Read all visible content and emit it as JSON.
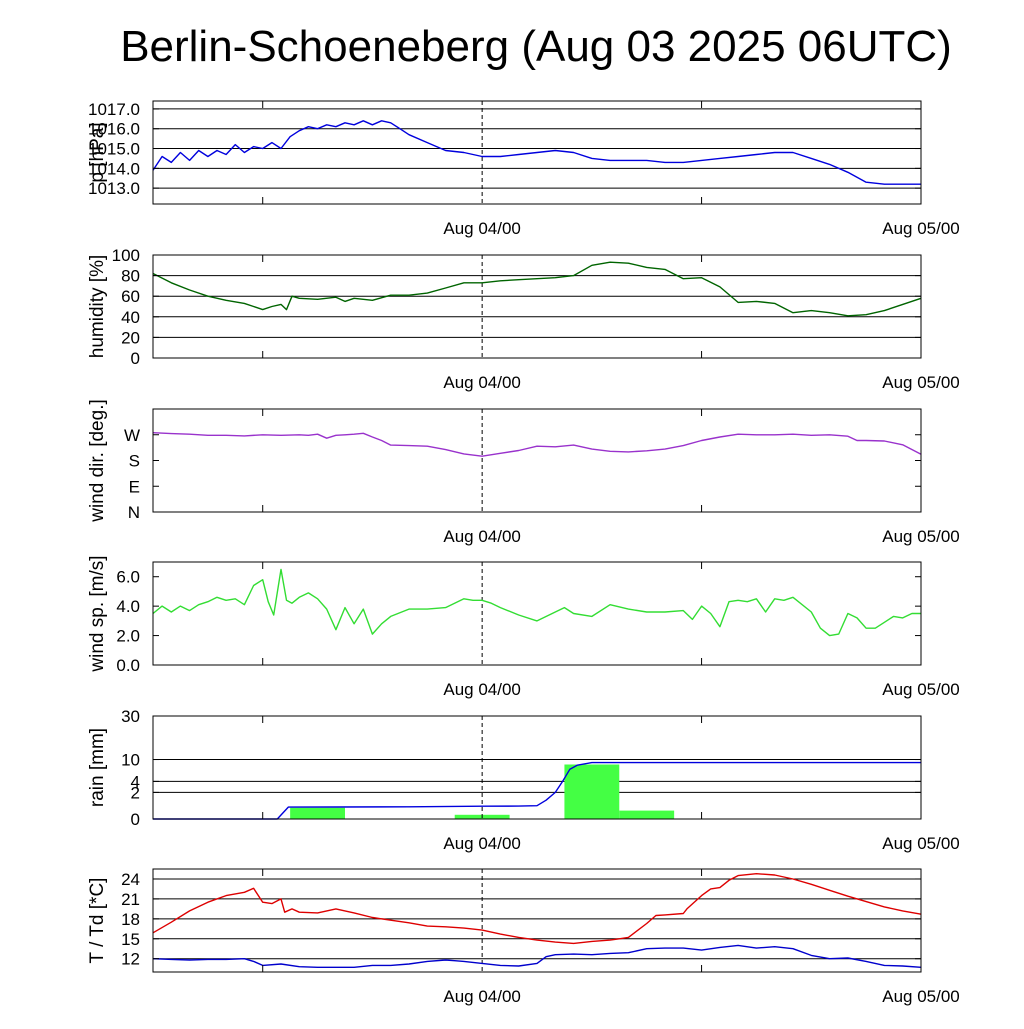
{
  "title": "Berlin-Schoeneberg (Aug 03 2025 06UTC)",
  "x_tick_labels": [
    "Aug 04/00",
    "Aug 05/00"
  ],
  "chart_data": [
    {
      "type": "line",
      "ylabel": "p [hPa]",
      "ylim": [
        1012.2,
        1017.4
      ],
      "yticks": [
        1013.0,
        1014.0,
        1015.0,
        1016.0,
        1017.0
      ],
      "ytick_labels": [
        "1013.0",
        "1014.0",
        "1015.0",
        "1016.0",
        "1017.0"
      ],
      "grid": true,
      "series": [
        {
          "color": "#0000dd",
          "x": [
            0,
            0.5,
            1,
            1.5,
            2,
            2.5,
            3,
            3.5,
            4,
            4.5,
            5,
            5.5,
            6,
            6.5,
            7,
            7.5,
            8,
            8.5,
            9,
            9.5,
            10,
            10.5,
            11,
            11.5,
            12,
            12.5,
            13,
            13.5,
            14,
            15,
            16,
            17,
            18,
            19,
            20,
            21,
            22,
            23,
            24,
            25,
            26,
            27,
            28,
            29,
            30,
            31,
            32,
            33,
            34,
            35,
            36,
            37,
            38,
            39,
            40,
            41,
            42
          ],
          "y": [
            1013.9,
            1014.6,
            1014.3,
            1014.8,
            1014.4,
            1014.9,
            1014.6,
            1014.9,
            1014.7,
            1015.2,
            1014.8,
            1015.1,
            1015.0,
            1015.3,
            1015.0,
            1015.6,
            1015.9,
            1016.1,
            1016.0,
            1016.2,
            1016.1,
            1016.3,
            1016.2,
            1016.4,
            1016.2,
            1016.4,
            1016.3,
            1016.0,
            1015.7,
            1015.3,
            1014.9,
            1014.8,
            1014.6,
            1014.6,
            1014.7,
            1014.8,
            1014.9,
            1014.8,
            1014.5,
            1014.4,
            1014.4,
            1014.4,
            1014.3,
            1014.3,
            1014.4,
            1014.5,
            1014.6,
            1014.7,
            1014.8,
            1014.8,
            1014.5,
            1014.2,
            1013.8,
            1013.3,
            1013.2,
            1013.2,
            1013.2
          ]
        }
      ]
    },
    {
      "type": "line",
      "ylabel": "humidity [%]",
      "ylim": [
        0,
        100
      ],
      "yticks": [
        0,
        20,
        40,
        60,
        80,
        100
      ],
      "ytick_labels": [
        "0",
        "20",
        "40",
        "60",
        "80",
        "100"
      ],
      "grid": true,
      "series": [
        {
          "color": "#006400",
          "x": [
            0,
            1,
            2,
            3,
            4,
            5,
            5.5,
            6,
            6.5,
            7,
            7.3,
            7.6,
            8,
            9,
            10,
            10.5,
            11,
            12,
            13,
            14,
            15,
            16,
            17,
            18,
            19,
            20,
            21,
            22,
            23,
            24,
            25,
            26,
            27,
            28,
            29,
            30,
            31,
            32,
            33,
            34,
            35,
            36,
            37,
            38,
            39,
            40,
            41,
            42
          ],
          "y": [
            82,
            73,
            66,
            60,
            56,
            53,
            50,
            47,
            50,
            52,
            47,
            60,
            58,
            57,
            59,
            55,
            58,
            56,
            61,
            61,
            63,
            68,
            73,
            73,
            75,
            76,
            77,
            78,
            80,
            90,
            93,
            92,
            88,
            86,
            77,
            78,
            69,
            54,
            55,
            53,
            44,
            46,
            44,
            41,
            42,
            46,
            52,
            58
          ]
        }
      ]
    },
    {
      "type": "line",
      "ylabel": "wind dir. [deg.]",
      "ylim": [
        0,
        360
      ],
      "yticks": [
        0,
        90,
        180,
        270
      ],
      "ytick_labels": [
        "N",
        "E",
        "S",
        "W"
      ],
      "grid": false,
      "series": [
        {
          "color": "#9932cc",
          "x": [
            0,
            1,
            2,
            3,
            4,
            5,
            6,
            7,
            8,
            8.5,
            9,
            9.5,
            10,
            10.5,
            11,
            11.5,
            12,
            12.5,
            13,
            14,
            15,
            16,
            17,
            18,
            19,
            20,
            21,
            22,
            23,
            24,
            25,
            26,
            27,
            28,
            29,
            30,
            31,
            32,
            33,
            34,
            35,
            36,
            37,
            38,
            38.5,
            39,
            40,
            41,
            42
          ],
          "y": [
            277,
            274,
            272,
            268,
            268,
            266,
            270,
            268,
            270,
            268,
            272,
            258,
            268,
            270,
            272,
            275,
            262,
            250,
            234,
            232,
            230,
            218,
            203,
            195,
            205,
            215,
            230,
            228,
            234,
            220,
            212,
            210,
            214,
            220,
            232,
            250,
            262,
            272,
            270,
            270,
            272,
            268,
            270,
            265,
            250,
            250,
            248,
            235,
            202
          ]
        }
      ]
    },
    {
      "type": "line",
      "ylabel": "wind sp. [m/s]",
      "ylim": [
        0,
        7
      ],
      "yticks": [
        0,
        2,
        4,
        6
      ],
      "ytick_labels": [
        "0.0",
        "2.0",
        "4.0",
        "6.0"
      ],
      "grid": false,
      "series": [
        {
          "color": "#33dd33",
          "x": [
            0,
            0.5,
            1,
            1.5,
            2,
            2.5,
            3,
            3.5,
            4,
            4.5,
            5,
            5.5,
            6,
            6.3,
            6.6,
            7,
            7.3,
            7.6,
            8,
            8.5,
            9,
            9.5,
            10,
            10.5,
            11,
            11.5,
            12,
            12.5,
            13,
            14,
            15,
            16,
            17,
            17.5,
            18,
            18.5,
            19,
            20,
            21,
            22,
            22.5,
            23,
            24,
            25,
            26,
            27,
            28,
            29,
            29.5,
            30,
            30.5,
            31,
            31.5,
            32,
            32.5,
            33,
            33.5,
            34,
            34.5,
            35,
            36,
            36.5,
            37,
            37.5,
            38,
            38.5,
            39,
            39.5,
            40,
            40.5,
            41,
            41.5,
            42
          ],
          "y": [
            3.5,
            4.0,
            3.6,
            4.0,
            3.7,
            4.1,
            4.3,
            4.6,
            4.4,
            4.5,
            4.1,
            5.4,
            5.8,
            4.3,
            3.4,
            6.5,
            4.4,
            4.2,
            4.6,
            4.9,
            4.5,
            3.8,
            2.4,
            3.9,
            2.8,
            3.8,
            2.1,
            2.8,
            3.3,
            3.8,
            3.8,
            3.9,
            4.5,
            4.4,
            4.4,
            4.2,
            3.9,
            3.4,
            3.0,
            3.6,
            3.9,
            3.5,
            3.3,
            4.1,
            3.8,
            3.6,
            3.6,
            3.7,
            3.1,
            4.0,
            3.5,
            2.6,
            4.3,
            4.4,
            4.3,
            4.5,
            3.6,
            4.5,
            4.4,
            4.6,
            3.6,
            2.5,
            2.0,
            2.1,
            3.5,
            3.2,
            2.5,
            2.5,
            2.9,
            3.3,
            3.2,
            3.5,
            3.5
          ]
        }
      ]
    },
    {
      "type": "bar",
      "ylabel": "rain [mm]",
      "scale": "sqrt",
      "ylim": [
        0,
        30
      ],
      "yticks": [
        0,
        2,
        4,
        10,
        30
      ],
      "ytick_labels": [
        "0",
        "2",
        "4",
        "10",
        "30"
      ],
      "grid": true,
      "bars": [
        {
          "x0": 7.5,
          "x1": 10.5,
          "value": 0.36
        },
        {
          "x0": 16.5,
          "x1": 19.5,
          "value": 0.05
        },
        {
          "x0": 22.5,
          "x1": 25.5,
          "value": 8.4
        },
        {
          "x0": 25.5,
          "x1": 28.5,
          "value": 0.2
        }
      ],
      "bar_color": "#44ff44",
      "series": [
        {
          "color": "#0000dd",
          "x": [
            0,
            6.8,
            7.4,
            10,
            14,
            18,
            20,
            21,
            21.5,
            22,
            22.4,
            22.8,
            23.2,
            24,
            42
          ],
          "y": [
            0,
            0,
            0.4,
            0.41,
            0.42,
            0.46,
            0.47,
            0.5,
            1.0,
            2.0,
            4.0,
            7.0,
            8.2,
            9.0,
            9.0
          ]
        }
      ]
    },
    {
      "type": "line",
      "ylabel": "T / Td [*C]",
      "ylim": [
        10,
        25.5
      ],
      "yticks": [
        12,
        15,
        18,
        21,
        24
      ],
      "ytick_labels": [
        "12",
        "15",
        "18",
        "21",
        "24"
      ],
      "grid": true,
      "series": [
        {
          "color": "#dd0000",
          "x": [
            0,
            1,
            2,
            3,
            4,
            5,
            5.5,
            6,
            6.5,
            7,
            7.2,
            7.6,
            8,
            9,
            10,
            11,
            12,
            13,
            14,
            15,
            16,
            17,
            18,
            19,
            20,
            21,
            22,
            23,
            24,
            25,
            25.5,
            26,
            27,
            27.5,
            28,
            29,
            29.2,
            30,
            30.5,
            31,
            31.5,
            32,
            33,
            34,
            35,
            36,
            37,
            38,
            39,
            40,
            41,
            42
          ],
          "y": [
            15.9,
            17.5,
            19.2,
            20.5,
            21.5,
            22.0,
            22.6,
            20.5,
            20.3,
            21.0,
            19.0,
            19.5,
            19.0,
            18.9,
            19.5,
            18.9,
            18.2,
            17.8,
            17.4,
            16.9,
            16.8,
            16.6,
            16.3,
            15.7,
            15.2,
            14.8,
            14.5,
            14.3,
            14.6,
            14.8,
            15.0,
            15.2,
            17.3,
            18.5,
            18.6,
            18.8,
            19.5,
            21.5,
            22.5,
            22.7,
            23.8,
            24.5,
            24.8,
            24.6,
            24.0,
            23.2,
            22.3,
            21.4,
            20.6,
            19.8,
            19.2,
            18.7
          ]
        },
        {
          "color": "#0000cc",
          "x": [
            0,
            1,
            2,
            3,
            4,
            5,
            5.5,
            6,
            7,
            8,
            9,
            10,
            11,
            12,
            13,
            14,
            15,
            16,
            16.5,
            17,
            18,
            19,
            20,
            21,
            21.5,
            22,
            23,
            24,
            25,
            26,
            27,
            28,
            29,
            30,
            31,
            32,
            33,
            34,
            35,
            36,
            37,
            38,
            39,
            40,
            41,
            42
          ],
          "y": [
            12.0,
            11.9,
            11.8,
            11.9,
            11.9,
            12.0,
            11.6,
            11.0,
            11.2,
            10.8,
            10.7,
            10.7,
            10.7,
            11.0,
            11.0,
            11.2,
            11.6,
            11.8,
            11.7,
            11.6,
            11.3,
            11.0,
            10.9,
            11.3,
            12.3,
            12.6,
            12.7,
            12.6,
            12.8,
            12.9,
            13.5,
            13.6,
            13.6,
            13.3,
            13.7,
            14.0,
            13.6,
            13.8,
            13.5,
            12.5,
            12.0,
            12.1,
            11.6,
            11.0,
            10.9,
            10.7
          ]
        }
      ]
    }
  ]
}
